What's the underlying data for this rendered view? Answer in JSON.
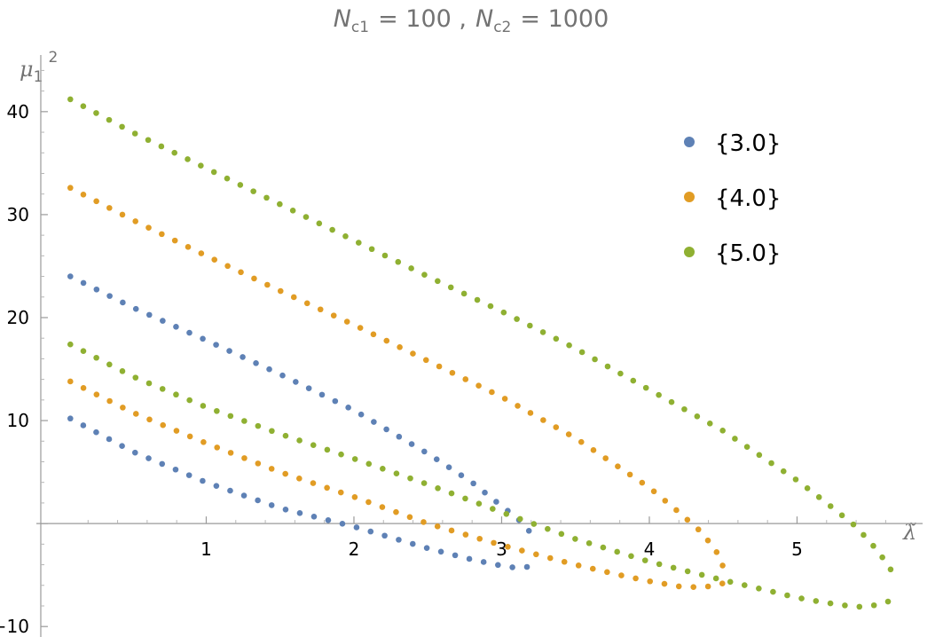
{
  "chart_data": {
    "type": "scatter",
    "title": {
      "n1_symbol": "N",
      "n1_sub": "c1",
      "n1_value": "= 100 ,",
      "n2_symbol": "N",
      "n2_sub": "c2",
      "n2_value": "= 1000"
    },
    "ylabel": {
      "symbol": "μ",
      "sub": "1",
      "sup": "2"
    },
    "xlabel": "λ̃",
    "xlim": [
      -0.15,
      5.85
    ],
    "ylim": [
      -10.5,
      45.5
    ],
    "x_ticks": [
      1,
      2,
      3,
      4,
      5
    ],
    "x_tick_labels": [
      "1",
      "2",
      "3",
      "4",
      "5"
    ],
    "y_ticks": [
      -10,
      10,
      20,
      30,
      40
    ],
    "y_tick_labels": [
      "−10",
      "10",
      "20",
      "30",
      "40"
    ],
    "legend_position": "top-right",
    "series": [
      {
        "name": "{3.0}",
        "color": "#5E81B5",
        "branches": [
          {
            "x": [
              0.08,
              0.5,
              1.0,
              1.5,
              2.0,
              2.5,
              2.8,
              3.0,
              3.1,
              3.18,
              3.22
            ],
            "y": [
              10.2,
              7.0,
              4.0,
              1.5,
              -0.3,
              -2.4,
              -3.5,
              -4.1,
              -4.3,
              -4.2,
              -4.1
            ]
          },
          {
            "x": [
              0.08,
              0.5,
              1.0,
              1.5,
              2.0,
              2.5,
              2.8,
              3.0,
              3.1,
              3.18,
              3.22
            ],
            "y": [
              24.0,
              21.0,
              17.8,
              14.5,
              11.0,
              6.8,
              4.0,
              1.7,
              0.6,
              -0.6,
              -1.5
            ]
          }
        ]
      },
      {
        "name": "{4.0}",
        "color": "#E19C24",
        "branches": [
          {
            "x": [
              0.08,
              0.5,
              1.0,
              1.5,
              2.0,
              2.5,
              3.0,
              3.5,
              3.8,
              4.0,
              4.2,
              4.35,
              4.45,
              4.5
            ],
            "y": [
              13.8,
              10.8,
              7.8,
              5.0,
              2.6,
              0.0,
              -2.1,
              -4.0,
              -5.0,
              -5.6,
              -6.1,
              -6.2,
              -6.0,
              -5.8
            ]
          },
          {
            "x": [
              0.08,
              0.5,
              1.0,
              1.5,
              2.0,
              2.5,
              3.0,
              3.5,
              4.0,
              4.2,
              4.35,
              4.45,
              4.5
            ],
            "y": [
              32.6,
              29.5,
              26.0,
              22.6,
              19.3,
              15.8,
              12.3,
              8.3,
              3.5,
              1.1,
              -0.8,
              -2.6,
              -4.2
            ]
          }
        ]
      },
      {
        "name": "{5.0}",
        "color": "#8FB032",
        "branches": [
          {
            "x": [
              0.08,
              0.5,
              1.0,
              1.5,
              2.0,
              2.5,
              3.0,
              3.5,
              4.0,
              4.5,
              4.8,
              5.0,
              5.2,
              5.4,
              5.5,
              5.6,
              5.65
            ],
            "y": [
              17.4,
              14.3,
              11.3,
              8.7,
              6.3,
              3.8,
              1.1,
              -1.5,
              -3.7,
              -5.5,
              -6.5,
              -7.2,
              -7.7,
              -8.1,
              -8.0,
              -7.7,
              -7.3
            ]
          },
          {
            "x": [
              0.08,
              0.5,
              1.0,
              1.5,
              2.0,
              2.5,
              3.0,
              3.5,
              4.0,
              4.5,
              5.0,
              5.2,
              5.4,
              5.55,
              5.65
            ],
            "y": [
              41.2,
              38.0,
              34.5,
              31.0,
              27.5,
              24.0,
              20.6,
              17.0,
              13.0,
              9.0,
              4.2,
              2.0,
              -0.3,
              -2.7,
              -4.8
            ]
          }
        ]
      }
    ]
  }
}
